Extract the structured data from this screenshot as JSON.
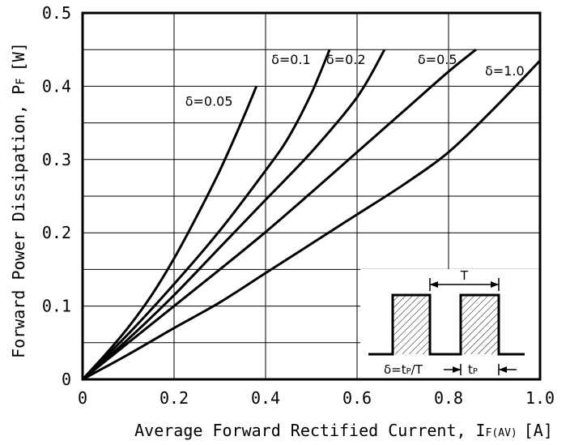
{
  "chart_data": {
    "type": "line",
    "xlabel": "Average Forward Rectified Current, I F(AV) [A]",
    "xlabel_main": "Average Forward Rectified Current, I",
    "xlabel_sub": "F(AV)",
    "xlabel_unit": "[A]",
    "ylabel_main": "Forward Power Dissipation, P",
    "ylabel_sub": "F",
    "ylabel_unit": "[W]",
    "xlim": [
      0,
      1.0
    ],
    "ylim": [
      0,
      0.5
    ],
    "xticks": [
      "0",
      "0.2",
      "0.4",
      "0.6",
      "0.8",
      "1.0"
    ],
    "yticks": [
      "0",
      "0.1",
      "0.2",
      "0.3",
      "0.4",
      "0.5"
    ],
    "grid": true,
    "series": [
      {
        "name": "δ=0.05",
        "x": [
          0,
          0.05,
          0.1,
          0.15,
          0.2,
          0.25,
          0.3,
          0.35,
          0.38
        ],
        "y": [
          0,
          0.034,
          0.071,
          0.114,
          0.165,
          0.223,
          0.285,
          0.355,
          0.4
        ]
      },
      {
        "name": "δ=0.1",
        "x": [
          0,
          0.1,
          0.2,
          0.3,
          0.4,
          0.45,
          0.5,
          0.54
        ],
        "y": [
          0,
          0.062,
          0.13,
          0.203,
          0.285,
          0.33,
          0.39,
          0.45
        ]
      },
      {
        "name": "δ=0.2",
        "x": [
          0,
          0.1,
          0.2,
          0.3,
          0.4,
          0.5,
          0.6,
          0.66
        ],
        "y": [
          0,
          0.055,
          0.115,
          0.18,
          0.245,
          0.31,
          0.385,
          0.45
        ]
      },
      {
        "name": "δ=0.5",
        "x": [
          0,
          0.1,
          0.2,
          0.3,
          0.4,
          0.5,
          0.6,
          0.7,
          0.8,
          0.86
        ],
        "y": [
          0,
          0.05,
          0.1,
          0.15,
          0.201,
          0.255,
          0.31,
          0.365,
          0.42,
          0.45
        ]
      },
      {
        "name": "δ=1.0",
        "x": [
          0,
          0.1,
          0.2,
          0.3,
          0.4,
          0.5,
          0.6,
          0.7,
          0.8,
          0.9,
          1.0
        ],
        "y": [
          0,
          0.034,
          0.07,
          0.105,
          0.145,
          0.185,
          0.225,
          0.265,
          0.31,
          0.37,
          0.435
        ]
      }
    ],
    "inset": {
      "period_label": "T",
      "duty_label": "δ=t P/T",
      "duty_main": "δ=t",
      "duty_sub": "P",
      "duty_tail": "/T",
      "pulse_label_main": "t",
      "pulse_label_sub": "P"
    }
  }
}
